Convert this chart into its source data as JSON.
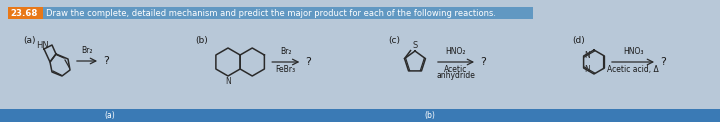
{
  "bg_color": "#b8c8d8",
  "header_orange": "#e87818",
  "header_blue": "#4488bb",
  "header_number": "23.68",
  "header_text": "Draw the complete, detailed mechanism and predict the major product for each of the following reactions.",
  "label_a": "(a)",
  "label_b": "(b)",
  "label_c": "(c)",
  "label_d": "(d)",
  "hn_label": "HN",
  "reagent_a": "Br₂",
  "reagent_b_1": "Br₂",
  "reagent_b_2": "FeBr₃",
  "reagent_c_1": "HNO₂",
  "reagent_c_2": "Acetic",
  "reagent_c_3": "anhydride",
  "reagent_d_1": "HNO₃",
  "reagent_d_2": "Acetic acid, Δ",
  "qmark": "?",
  "n_label": "N",
  "s_label": "S",
  "struct_color": "#2a2a2a",
  "text_color": "#1a1a1a",
  "bottom_bar_color": "#3a7ab5",
  "bottom_text_a": "(a)",
  "bottom_text_b": "(b)",
  "figsize": [
    7.2,
    1.22
  ],
  "dpi": 100
}
